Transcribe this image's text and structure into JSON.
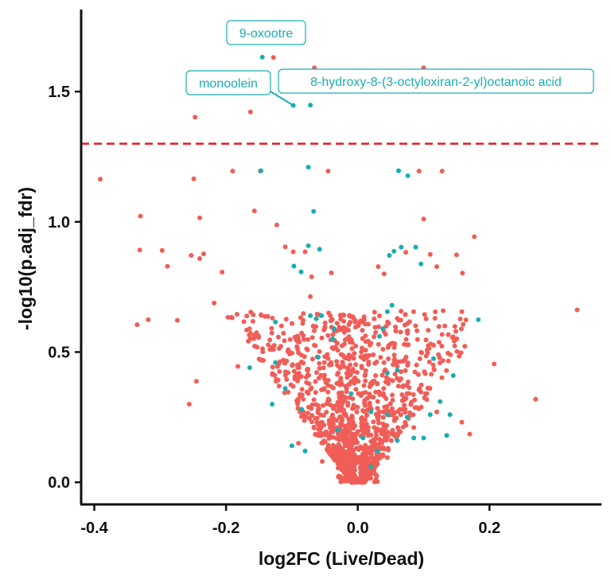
{
  "chart_data": {
    "type": "scatter",
    "title": "",
    "xlabel": "log2FC (Live/Dead)",
    "ylabel": "-log10(p.adj_fdr)",
    "xlim": [
      -0.42,
      0.37
    ],
    "ylim": [
      -0.085,
      1.815
    ],
    "xticks": [
      -0.4,
      -0.2,
      0.0,
      0.2
    ],
    "xtick_labels": [
      "-0.4",
      "-0.2",
      "0.0",
      "0.2"
    ],
    "yticks": [
      0.0,
      0.5,
      1.0,
      1.5
    ],
    "ytick_labels": [
      "0.0",
      "0.5",
      "1.0",
      "1.5"
    ],
    "grid": false,
    "legend": "none",
    "threshold": {
      "y": 1.3,
      "color": "#e8191e",
      "style": "dashed"
    },
    "colors": {
      "other": "#f15d57",
      "highlight": "#1aaeb1"
    },
    "annotations": [
      {
        "label": "9-oxootre",
        "x": -0.145,
        "y": 1.632
      },
      {
        "label": "monoolein",
        "x": -0.098,
        "y": 1.447
      },
      {
        "label": "8-hydroxy-8-(3-octyloxiran-2-yl)octanoic acid",
        "x": -0.072,
        "y": 1.448
      }
    ],
    "series": [
      {
        "color_key": "other",
        "points": [
          [
            -0.391,
            1.164
          ],
          [
            -0.335,
            0.605
          ],
          [
            -0.318,
            0.624
          ],
          [
            -0.33,
            1.022
          ],
          [
            -0.331,
            0.892
          ],
          [
            -0.297,
            0.89
          ],
          [
            -0.289,
            0.829
          ],
          [
            -0.274,
            0.622
          ],
          [
            -0.253,
            0.871
          ],
          [
            -0.247,
            1.402
          ],
          [
            -0.249,
            1.165
          ],
          [
            -0.24,
            1.015
          ],
          [
            -0.234,
            0.877
          ],
          [
            -0.24,
            0.859
          ],
          [
            -0.218,
            0.688
          ],
          [
            -0.206,
            0.807
          ],
          [
            -0.19,
            1.195
          ],
          [
            -0.163,
            1.422
          ],
          [
            -0.157,
            1.042
          ],
          [
            -0.148,
            1.195
          ],
          [
            -0.128,
            1.631
          ],
          [
            -0.123,
            0.988
          ],
          [
            -0.11,
            0.904
          ],
          [
            -0.098,
            0.885
          ],
          [
            -0.08,
            0.885
          ],
          [
            -0.066,
            1.591
          ],
          [
            -0.045,
            1.195
          ],
          [
            -0.04,
            0.804
          ],
          [
            -0.07,
            0.789
          ],
          [
            -0.072,
            0.713
          ],
          [
            0.031,
            0.828
          ],
          [
            0.04,
            0.8
          ],
          [
            0.073,
            0.883
          ],
          [
            0.093,
            1.195
          ],
          [
            0.1,
            1.011
          ],
          [
            0.11,
            0.875
          ],
          [
            0.12,
            0.828
          ],
          [
            0.128,
            1.195
          ],
          [
            0.15,
            0.873
          ],
          [
            0.159,
            0.803
          ],
          [
            0.177,
            0.943
          ],
          [
            0.158,
            0.655
          ],
          [
            0.207,
            0.454
          ],
          [
            0.27,
            0.319
          ],
          [
            0.333,
            0.662
          ],
          [
            0.1,
            1.591
          ],
          [
            -0.256,
            0.3
          ],
          [
            -0.245,
            0.388
          ],
          [
            0.158,
            0.231
          ],
          [
            0.17,
            0.185
          ],
          [
            -0.182,
            0.445
          ],
          [
            -0.09,
            0.15
          ],
          [
            0.12,
            0.27
          ],
          [
            0.085,
            0.21
          ],
          [
            -0.054,
            0.08
          ],
          [
            0.045,
            0.095
          ],
          [
            -0.03,
            0.055
          ],
          [
            0.02,
            0.045
          ],
          [
            0.005,
            0.015
          ],
          [
            -0.005,
            0.02
          ]
        ]
      },
      {
        "color_key": "highlight",
        "points": [
          [
            -0.145,
            1.632
          ],
          [
            -0.098,
            1.447
          ],
          [
            -0.072,
            1.448
          ],
          [
            -0.147,
            1.196
          ],
          [
            -0.075,
            1.21
          ],
          [
            -0.067,
            1.04
          ],
          [
            -0.075,
            0.908
          ],
          [
            -0.097,
            0.83
          ],
          [
            -0.086,
            0.808
          ],
          [
            -0.058,
            0.895
          ],
          [
            0.062,
            1.196
          ],
          [
            0.076,
            1.177
          ],
          [
            0.048,
            0.871
          ],
          [
            0.055,
            0.887
          ],
          [
            0.066,
            0.903
          ],
          [
            0.088,
            0.903
          ],
          [
            0.096,
            0.838
          ],
          [
            0.183,
            0.624
          ],
          [
            0.052,
            0.68
          ],
          [
            0.045,
            0.655
          ],
          [
            -0.072,
            0.64
          ],
          [
            -0.063,
            0.628
          ],
          [
            -0.055,
            0.64
          ],
          [
            -0.036,
            0.59
          ],
          [
            -0.038,
            0.55
          ],
          [
            -0.125,
            0.615
          ],
          [
            0.038,
            0.59
          ],
          [
            0.033,
            0.56
          ],
          [
            -0.164,
            0.44
          ],
          [
            -0.11,
            0.36
          ],
          [
            -0.06,
            0.48
          ],
          [
            0.115,
            0.475
          ],
          [
            0.06,
            0.43
          ],
          [
            0.045,
            0.42
          ],
          [
            0.145,
            0.41
          ],
          [
            0.125,
            0.31
          ],
          [
            -0.13,
            0.3
          ],
          [
            -0.01,
            0.34
          ],
          [
            0.02,
            0.27
          ],
          [
            -0.085,
            0.28
          ],
          [
            0.11,
            0.26
          ],
          [
            0.135,
            0.18
          ],
          [
            -0.1,
            0.14
          ],
          [
            -0.08,
            0.12
          ],
          [
            0.06,
            0.16
          ],
          [
            0.085,
            0.17
          ],
          [
            0.1,
            0.17
          ],
          [
            0.14,
            0.26
          ],
          [
            -0.03,
            0.2
          ],
          [
            0.008,
            0.17
          ],
          [
            0.02,
            0.06
          ],
          [
            0.045,
            0.26
          ],
          [
            0.075,
            0.25
          ],
          [
            0.03,
            0.12
          ],
          [
            -0.125,
            0.46
          ]
        ]
      }
    ]
  }
}
